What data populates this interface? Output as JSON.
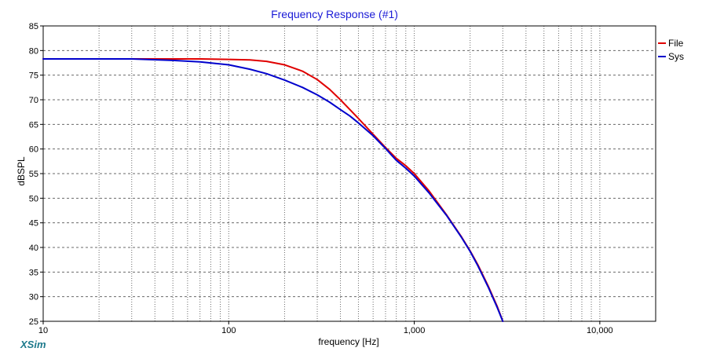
{
  "chart_data": {
    "type": "line",
    "title": "Frequency Response (#1)",
    "xlabel": "frequency [Hz]",
    "ylabel": "dBSPL",
    "x_scale": "log",
    "xlim": [
      10,
      20000
    ],
    "ylim": [
      25,
      85
    ],
    "x_tick_values": [
      10,
      100,
      1000,
      10000
    ],
    "x_tick_labels": [
      "10",
      "100",
      "1,000",
      "10,000"
    ],
    "y_ticks": [
      25,
      30,
      35,
      40,
      45,
      50,
      55,
      60,
      65,
      70,
      75,
      80,
      85
    ],
    "grid": true,
    "legend_position": "top-right",
    "series": [
      {
        "name": "File",
        "color": "#e00000",
        "x": [
          10,
          20,
          30,
          50,
          70,
          100,
          130,
          160,
          200,
          250,
          300,
          350,
          400,
          450,
          500,
          600,
          700,
          800,
          900,
          1000,
          1200,
          1500,
          1800,
          2000,
          2200,
          2500,
          2800,
          3000
        ],
        "y": [
          78.3,
          78.3,
          78.3,
          78.3,
          78.3,
          78.2,
          78.1,
          77.8,
          77.1,
          75.8,
          74.1,
          72.1,
          70.0,
          68.0,
          66.2,
          63.0,
          60.3,
          58.1,
          56.6,
          55.0,
          51.5,
          46.5,
          42.1,
          39.3,
          36.5,
          32.2,
          28.0,
          25.0
        ]
      },
      {
        "name": "Sys",
        "color": "#0000cc",
        "x": [
          10,
          20,
          30,
          50,
          70,
          100,
          130,
          160,
          200,
          250,
          300,
          350,
          400,
          450,
          500,
          600,
          700,
          800,
          900,
          1000,
          1200,
          1500,
          1800,
          2000,
          2200,
          2500,
          2800,
          3000
        ],
        "y": [
          78.3,
          78.3,
          78.3,
          78.0,
          77.7,
          77.1,
          76.2,
          75.3,
          74.0,
          72.5,
          71.0,
          69.5,
          68.0,
          66.7,
          65.3,
          62.7,
          60.1,
          57.7,
          56.1,
          54.5,
          51.1,
          46.4,
          42.0,
          39.2,
          36.3,
          32.0,
          27.8,
          25.0
        ]
      }
    ]
  },
  "brand": "XSim"
}
